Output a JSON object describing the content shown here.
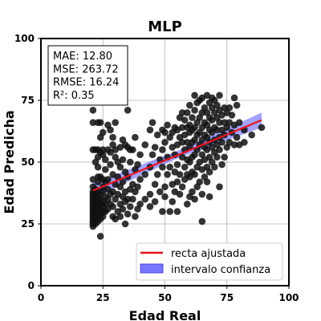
{
  "chart_data": {
    "type": "scatter",
    "title": "MLP",
    "xlabel": "Edad Real",
    "ylabel": "Edad Predicha",
    "xlim": [
      0,
      100
    ],
    "ylim": [
      0,
      100
    ],
    "xticks": [
      0,
      25,
      50,
      75,
      100
    ],
    "yticks": [
      0,
      25,
      50,
      75,
      100
    ],
    "grid": true,
    "metrics": [
      "MAE: 12.80",
      "MSE: 263.72",
      "RMSE: 16.24",
      "R²: 0.35"
    ],
    "legend": {
      "position": "lower-right",
      "entries": [
        {
          "label": "recta ajustada",
          "color": "#e8141c",
          "kind": "line"
        },
        {
          "label": "intervalo confianza",
          "color": "#7777ff",
          "kind": "patch"
        }
      ]
    },
    "fit_line": {
      "x": [
        21,
        89
      ],
      "y": [
        38.5,
        67.0
      ],
      "color": "#e8141c"
    },
    "confidence_band": {
      "x": [
        21,
        55,
        89
      ],
      "lower": [
        35.5,
        51.5,
        64.0
      ],
      "upper": [
        41.5,
        54.5,
        70.0
      ],
      "color": "#5555ff"
    },
    "points": [
      [
        21,
        24
      ],
      [
        21,
        25
      ],
      [
        21,
        26
      ],
      [
        21,
        27
      ],
      [
        21,
        28
      ],
      [
        21,
        29
      ],
      [
        21,
        30
      ],
      [
        21,
        31
      ],
      [
        21,
        32
      ],
      [
        21,
        33
      ],
      [
        21,
        34
      ],
      [
        21,
        35
      ],
      [
        21,
        36
      ],
      [
        21,
        37
      ],
      [
        21,
        38
      ],
      [
        21,
        40
      ],
      [
        21,
        43
      ],
      [
        21,
        55
      ],
      [
        21,
        66
      ],
      [
        21,
        71
      ],
      [
        22,
        25
      ],
      [
        22,
        27
      ],
      [
        22,
        29
      ],
      [
        22,
        31
      ],
      [
        22,
        33
      ],
      [
        22,
        35
      ],
      [
        22,
        37
      ],
      [
        22,
        39
      ],
      [
        22,
        50
      ],
      [
        22,
        55
      ],
      [
        23,
        26
      ],
      [
        23,
        28
      ],
      [
        23,
        30
      ],
      [
        23,
        32
      ],
      [
        23,
        34
      ],
      [
        23,
        36
      ],
      [
        23,
        38
      ],
      [
        23,
        42
      ],
      [
        23,
        44
      ],
      [
        23,
        48
      ],
      [
        23,
        52
      ],
      [
        23,
        55
      ],
      [
        23,
        66
      ],
      [
        24,
        20
      ],
      [
        24,
        27
      ],
      [
        24,
        29
      ],
      [
        24,
        31
      ],
      [
        24,
        33
      ],
      [
        24,
        35
      ],
      [
        24,
        37
      ],
      [
        24,
        44
      ],
      [
        24,
        54
      ],
      [
        24,
        60
      ],
      [
        24,
        66
      ],
      [
        25,
        28
      ],
      [
        25,
        30
      ],
      [
        25,
        32
      ],
      [
        25,
        34
      ],
      [
        25,
        38
      ],
      [
        25,
        40
      ],
      [
        25,
        43
      ],
      [
        25,
        53
      ],
      [
        25,
        55
      ],
      [
        25,
        62
      ],
      [
        26,
        30
      ],
      [
        26,
        33
      ],
      [
        26,
        36
      ],
      [
        26,
        42
      ],
      [
        26,
        47
      ],
      [
        26,
        51
      ],
      [
        27,
        31
      ],
      [
        27,
        35
      ],
      [
        27,
        39
      ],
      [
        27,
        43
      ],
      [
        27,
        55
      ],
      [
        27,
        65
      ],
      [
        28,
        33
      ],
      [
        28,
        37
      ],
      [
        28,
        49
      ],
      [
        28,
        54
      ],
      [
        28,
        63
      ],
      [
        29,
        28
      ],
      [
        29,
        32
      ],
      [
        29,
        38
      ],
      [
        29,
        45
      ],
      [
        29,
        57
      ],
      [
        29,
        60
      ],
      [
        30,
        27
      ],
      [
        30,
        35
      ],
      [
        30,
        41
      ],
      [
        30,
        52
      ],
      [
        30,
        55
      ],
      [
        30,
        66
      ],
      [
        31,
        30
      ],
      [
        31,
        37
      ],
      [
        31,
        44
      ],
      [
        31,
        50
      ],
      [
        32,
        28
      ],
      [
        32,
        33
      ],
      [
        32,
        40
      ],
      [
        32,
        48
      ],
      [
        32,
        56
      ],
      [
        33,
        31
      ],
      [
        33,
        36
      ],
      [
        33,
        42
      ],
      [
        33,
        51
      ],
      [
        33,
        59
      ],
      [
        34,
        25
      ],
      [
        34,
        34
      ],
      [
        34,
        38
      ],
      [
        34,
        46
      ],
      [
        34,
        57
      ],
      [
        35,
        29
      ],
      [
        35,
        35
      ],
      [
        35,
        44
      ],
      [
        35,
        56
      ],
      [
        35,
        71
      ],
      [
        36,
        32
      ],
      [
        36,
        39
      ],
      [
        36,
        50
      ],
      [
        36,
        55
      ],
      [
        37,
        35
      ],
      [
        37,
        41
      ],
      [
        37,
        55
      ],
      [
        38,
        28
      ],
      [
        38,
        38
      ],
      [
        38,
        47
      ],
      [
        38,
        60
      ],
      [
        39,
        31
      ],
      [
        39,
        40
      ],
      [
        39,
        49
      ],
      [
        40,
        33
      ],
      [
        40,
        43
      ],
      [
        40,
        53
      ],
      [
        42,
        35
      ],
      [
        42,
        45
      ],
      [
        42,
        57
      ],
      [
        44,
        32
      ],
      [
        44,
        37
      ],
      [
        44,
        48
      ],
      [
        44,
        63
      ],
      [
        45,
        53
      ],
      [
        45,
        66
      ],
      [
        46,
        34
      ],
      [
        46,
        41
      ],
      [
        46,
        56
      ],
      [
        47,
        45
      ],
      [
        47,
        61
      ],
      [
        48,
        38
      ],
      [
        48,
        51
      ],
      [
        49,
        30
      ],
      [
        49,
        48
      ],
      [
        49,
        55
      ],
      [
        49,
        63
      ],
      [
        50,
        36
      ],
      [
        50,
        40
      ],
      [
        50,
        58
      ],
      [
        50,
        62
      ],
      [
        51,
        45
      ],
      [
        51,
        52
      ],
      [
        51,
        65
      ],
      [
        52,
        30
      ],
      [
        52,
        48
      ],
      [
        52,
        60
      ],
      [
        53,
        34
      ],
      [
        53,
        41
      ],
      [
        53,
        56
      ],
      [
        53,
        62
      ],
      [
        54,
        38
      ],
      [
        54,
        46
      ],
      [
        54,
        53
      ],
      [
        54,
        64
      ],
      [
        55,
        30
      ],
      [
        55,
        42
      ],
      [
        55,
        49
      ],
      [
        55,
        57
      ],
      [
        55,
        63
      ],
      [
        56,
        37
      ],
      [
        56,
        45
      ],
      [
        56,
        60
      ],
      [
        56,
        68
      ],
      [
        57,
        40
      ],
      [
        57,
        52
      ],
      [
        57,
        58
      ],
      [
        57,
        64
      ],
      [
        57,
        70
      ],
      [
        58,
        43
      ],
      [
        58,
        48
      ],
      [
        58,
        55
      ],
      [
        58,
        61
      ],
      [
        58,
        67
      ],
      [
        59,
        33
      ],
      [
        59,
        45
      ],
      [
        59,
        51
      ],
      [
        59,
        58
      ],
      [
        59,
        64
      ],
      [
        59,
        70
      ],
      [
        60,
        36
      ],
      [
        60,
        44
      ],
      [
        60,
        50
      ],
      [
        60,
        56
      ],
      [
        60,
        62
      ],
      [
        60,
        65
      ],
      [
        60,
        73
      ],
      [
        61,
        38
      ],
      [
        61,
        46
      ],
      [
        61,
        52
      ],
      [
        61,
        58
      ],
      [
        61,
        63
      ],
      [
        61,
        68
      ],
      [
        62,
        35
      ],
      [
        62,
        45
      ],
      [
        62,
        53
      ],
      [
        62,
        59
      ],
      [
        62,
        64
      ],
      [
        62,
        71
      ],
      [
        62,
        77
      ],
      [
        63,
        40
      ],
      [
        63,
        48
      ],
      [
        63,
        55
      ],
      [
        63,
        61
      ],
      [
        63,
        66
      ],
      [
        63,
        74
      ],
      [
        64,
        42
      ],
      [
        64,
        50
      ],
      [
        64,
        57
      ],
      [
        64,
        62
      ],
      [
        64,
        68
      ],
      [
        64,
        75
      ],
      [
        65,
        26
      ],
      [
        65,
        37
      ],
      [
        65,
        47
      ],
      [
        65,
        53
      ],
      [
        65,
        59
      ],
      [
        65,
        64
      ],
      [
        65,
        70
      ],
      [
        65,
        76
      ],
      [
        66,
        44
      ],
      [
        66,
        51
      ],
      [
        66,
        56
      ],
      [
        66,
        61
      ],
      [
        66,
        66
      ],
      [
        66,
        72
      ],
      [
        67,
        42
      ],
      [
        67,
        48
      ],
      [
        67,
        55
      ],
      [
        67,
        60
      ],
      [
        67,
        65
      ],
      [
        67,
        70
      ],
      [
        67,
        77
      ],
      [
        68,
        36
      ],
      [
        68,
        46
      ],
      [
        68,
        52
      ],
      [
        68,
        58
      ],
      [
        68,
        63
      ],
      [
        68,
        68
      ],
      [
        68,
        74
      ],
      [
        69,
        50
      ],
      [
        69,
        56
      ],
      [
        69,
        62
      ],
      [
        69,
        67
      ],
      [
        69,
        72
      ],
      [
        69,
        76
      ],
      [
        70,
        48
      ],
      [
        70,
        54
      ],
      [
        70,
        59
      ],
      [
        70,
        64
      ],
      [
        70,
        70
      ],
      [
        70,
        75
      ],
      [
        71,
        52
      ],
      [
        71,
        57
      ],
      [
        71,
        63
      ],
      [
        71,
        68
      ],
      [
        71,
        73
      ],
      [
        72,
        40
      ],
      [
        72,
        55
      ],
      [
        72,
        60
      ],
      [
        72,
        66
      ],
      [
        72,
        71
      ],
      [
        72,
        77
      ],
      [
        73,
        49
      ],
      [
        73,
        58
      ],
      [
        73,
        63
      ],
      [
        73,
        69
      ],
      [
        74,
        52
      ],
      [
        74,
        61
      ],
      [
        74,
        66
      ],
      [
        74,
        72
      ],
      [
        75,
        56
      ],
      [
        75,
        64
      ],
      [
        75,
        70
      ],
      [
        76,
        58
      ],
      [
        76,
        66
      ],
      [
        76,
        72
      ],
      [
        77,
        62
      ],
      [
        77,
        69
      ],
      [
        78,
        57
      ],
      [
        78,
        65
      ],
      [
        78,
        76
      ],
      [
        79,
        60
      ],
      [
        79,
        73
      ],
      [
        80,
        57
      ],
      [
        80,
        66
      ],
      [
        82,
        58
      ],
      [
        82,
        63
      ],
      [
        85,
        61
      ],
      [
        89,
        64
      ]
    ]
  }
}
